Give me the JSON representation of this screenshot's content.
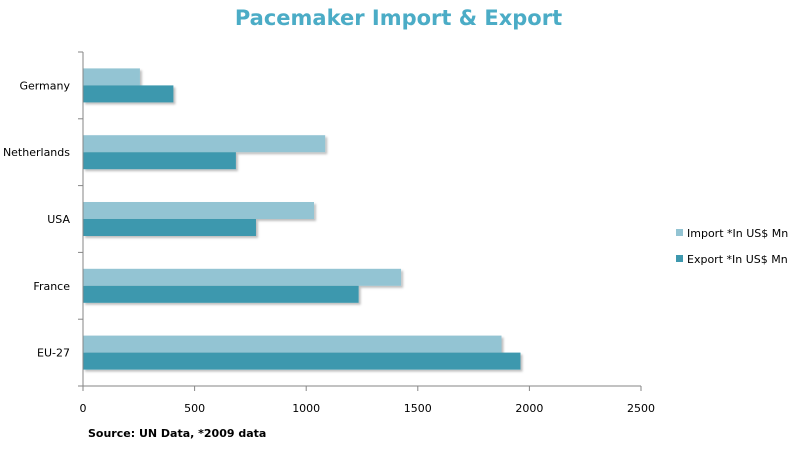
{
  "chart_data": {
    "type": "bar",
    "orientation": "horizontal",
    "title": "Pacemaker Import & Export",
    "categories": [
      "Germany",
      "Netherlands",
      "USA",
      "France",
      "EU-27"
    ],
    "series": [
      {
        "name": "Import *In US$ Mn",
        "values": [
          255,
          1085,
          1035,
          1425,
          1875
        ],
        "color": "#93c4d3"
      },
      {
        "name": "Export *In US$ Mn",
        "values": [
          405,
          685,
          775,
          1235,
          1960
        ],
        "color": "#3e98ae"
      }
    ],
    "xlim": [
      0,
      2500
    ],
    "xticks": [
      "0",
      "500",
      "1000",
      "1500",
      "2000",
      "2500"
    ],
    "xlabel": "",
    "ylabel": "",
    "grid": false,
    "legend_position": "right",
    "source_note": "Source: UN Data, *2009 data"
  }
}
